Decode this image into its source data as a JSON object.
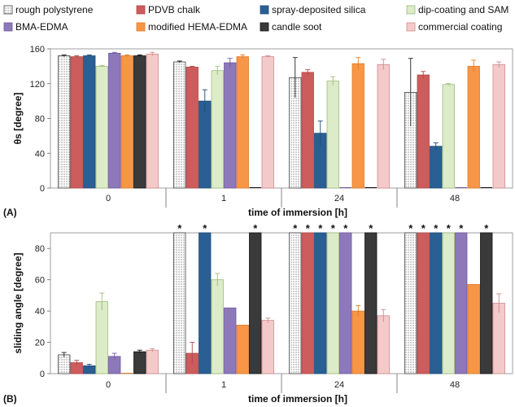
{
  "legend": [
    {
      "name": "rough polystyrene",
      "color": "#ffffff",
      "pattern": "dots",
      "stroke": "#444444"
    },
    {
      "name": "PDVB chalk",
      "color": "#cd5c5c",
      "stroke": "#b04848"
    },
    {
      "name": "spray-deposited silica",
      "color": "#2a5f94",
      "stroke": "#1f4b78"
    },
    {
      "name": "dip-coating and SAM",
      "color": "#dcebc8",
      "stroke": "#9ebc7c"
    },
    {
      "name": "BMA-EDMA",
      "color": "#8d78ba",
      "stroke": "#6f5a9e"
    },
    {
      "name": "modified HEMA-EDMA",
      "color": "#f79646",
      "stroke": "#e07a28"
    },
    {
      "name": "candle soot",
      "color": "#3a3a3a",
      "stroke": "#111111"
    },
    {
      "name": "commercial coating",
      "color": "#f4c9c9",
      "stroke": "#d08a8a"
    }
  ],
  "chart_data": [
    {
      "type": "bar",
      "panel_label": "(A)",
      "xlabel": "time of immersion [h]",
      "ylabel": "θs [degree]",
      "ylim": [
        0,
        160
      ],
      "yticks": [
        0,
        40,
        80,
        120,
        160
      ],
      "categories": [
        "0",
        "1",
        "24",
        "48"
      ],
      "series": [
        {
          "name": "rough polystyrene",
          "values": [
            152,
            145,
            127,
            110
          ],
          "errors": [
            1,
            1,
            23,
            39
          ]
        },
        {
          "name": "PDVB chalk",
          "values": [
            151,
            139,
            133,
            130
          ],
          "errors": [
            1,
            1,
            3,
            4
          ]
        },
        {
          "name": "spray-deposited silica",
          "values": [
            152,
            100,
            63,
            48
          ],
          "errors": [
            1,
            13,
            14,
            4
          ]
        },
        {
          "name": "dip-coating and SAM",
          "values": [
            140,
            135,
            123,
            119
          ],
          "errors": [
            1,
            5,
            5,
            1
          ]
        },
        {
          "name": "BMA-EDMA",
          "values": [
            155,
            144,
            0,
            0
          ],
          "errors": [
            1,
            5,
            0,
            0
          ]
        },
        {
          "name": "modified HEMA-EDMA",
          "values": [
            152,
            151,
            143,
            140
          ],
          "errors": [
            1,
            2,
            7,
            7
          ]
        },
        {
          "name": "candle soot",
          "values": [
            152,
            0,
            0,
            0
          ],
          "errors": [
            1,
            0,
            0,
            0
          ]
        },
        {
          "name": "commercial coating",
          "values": [
            154,
            151,
            142,
            142
          ],
          "errors": [
            2,
            1,
            6,
            3
          ]
        }
      ]
    },
    {
      "type": "bar",
      "panel_label": "(B)",
      "xlabel": "time of immersion [h]",
      "ylabel": "sliding angle [degree]",
      "ylim": [
        0,
        90
      ],
      "yticks": [
        0,
        20,
        40,
        60,
        80
      ],
      "categories": [
        "0",
        "1",
        "24",
        "48"
      ],
      "annotation": "*",
      "series": [
        {
          "name": "rough polystyrene",
          "values": [
            12,
            90,
            90,
            90
          ],
          "errors": [
            1.5,
            0,
            0,
            0
          ],
          "starred": [
            false,
            true,
            true,
            true
          ]
        },
        {
          "name": "PDVB chalk",
          "values": [
            7,
            13,
            90,
            90
          ],
          "errors": [
            1.5,
            7,
            0,
            0
          ],
          "starred": [
            false,
            false,
            true,
            true
          ]
        },
        {
          "name": "spray-deposited silica",
          "values": [
            5,
            90,
            90,
            90
          ],
          "errors": [
            1,
            0,
            0,
            0
          ],
          "starred": [
            false,
            true,
            true,
            true
          ]
        },
        {
          "name": "dip-coating and SAM",
          "values": [
            46,
            60,
            90,
            90
          ],
          "errors": [
            5.5,
            4,
            0,
            0
          ],
          "starred": [
            false,
            false,
            true,
            true
          ]
        },
        {
          "name": "BMA-EDMA",
          "values": [
            11,
            42,
            90,
            90
          ],
          "errors": [
            2,
            0,
            0,
            0
          ],
          "starred": [
            false,
            false,
            true,
            true
          ]
        },
        {
          "name": "modified HEMA-EDMA",
          "values": [
            0,
            31,
            40,
            57
          ],
          "errors": [
            0,
            0,
            3.5,
            0
          ],
          "starred": [
            false,
            false,
            false,
            false
          ]
        },
        {
          "name": "candle soot",
          "values": [
            14,
            90,
            90,
            90
          ],
          "errors": [
            1,
            0,
            0,
            0
          ],
          "starred": [
            false,
            true,
            true,
            true
          ]
        },
        {
          "name": "commercial coating",
          "values": [
            15,
            34,
            37,
            45
          ],
          "errors": [
            1,
            1.5,
            4,
            6
          ],
          "starred": [
            false,
            false,
            false,
            false
          ]
        }
      ]
    }
  ]
}
